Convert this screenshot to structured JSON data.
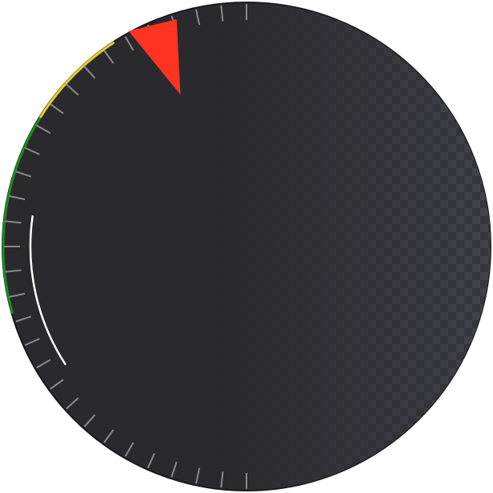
{
  "gauge": {
    "zone_colors": {
      "face": "#2a2a2e",
      "face_edge": "#1a1a1d",
      "checker_light": "#4a4a52",
      "tick": "#8a8a8a",
      "green_zone": "#1f8a1f",
      "yellow_zone": "#e6d21a",
      "value_arc": "#ffffff",
      "marker": "#ff3322"
    },
    "marker_icon": "triangle-pointer-icon",
    "ticks": {
      "count": 60
    }
  }
}
